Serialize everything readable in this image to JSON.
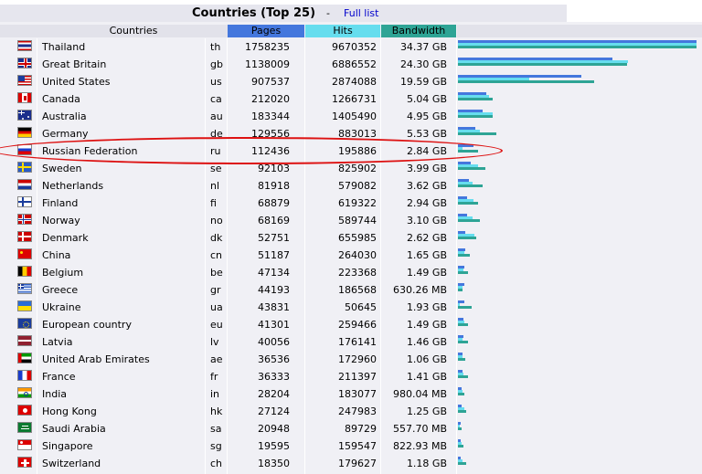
{
  "header": {
    "title": "Countries (Top 25)",
    "separator": "-",
    "full_list_label": "Full list"
  },
  "columns": {
    "countries": "Countries",
    "pages": "Pages",
    "hits": "Hits",
    "bandwidth": "Bandwidth"
  },
  "colors": {
    "pages": "#4477dd",
    "hits": "#66ddee",
    "bandwidth": "#2ea495",
    "highlight": "#dd1111"
  },
  "rows": [
    {
      "name": "Thailand",
      "code": "th",
      "pages": "1758235",
      "hits": "9670352",
      "bandwidth": "34.37 GB",
      "flag": "thailand-flag-icon"
    },
    {
      "name": "Great Britain",
      "code": "gb",
      "pages": "1138009",
      "hits": "6886552",
      "bandwidth": "24.30 GB",
      "flag": "great-britain-flag-icon"
    },
    {
      "name": "United States",
      "code": "us",
      "pages": "907537",
      "hits": "2874088",
      "bandwidth": "19.59 GB",
      "flag": "united-states-flag-icon"
    },
    {
      "name": "Canada",
      "code": "ca",
      "pages": "212020",
      "hits": "1266731",
      "bandwidth": "5.04 GB",
      "flag": "canada-flag-icon"
    },
    {
      "name": "Australia",
      "code": "au",
      "pages": "183344",
      "hits": "1405490",
      "bandwidth": "4.95 GB",
      "flag": "australia-flag-icon"
    },
    {
      "name": "Germany",
      "code": "de",
      "pages": "129556",
      "hits": "883013",
      "bandwidth": "5.53 GB",
      "flag": "germany-flag-icon"
    },
    {
      "name": "Russian Federation",
      "code": "ru",
      "pages": "112436",
      "hits": "195886",
      "bandwidth": "2.84 GB",
      "flag": "russia-flag-icon"
    },
    {
      "name": "Sweden",
      "code": "se",
      "pages": "92103",
      "hits": "825902",
      "bandwidth": "3.99 GB",
      "flag": "sweden-flag-icon"
    },
    {
      "name": "Netherlands",
      "code": "nl",
      "pages": "81918",
      "hits": "579082",
      "bandwidth": "3.62 GB",
      "flag": "netherlands-flag-icon"
    },
    {
      "name": "Finland",
      "code": "fi",
      "pages": "68879",
      "hits": "619322",
      "bandwidth": "2.94 GB",
      "flag": "finland-flag-icon"
    },
    {
      "name": "Norway",
      "code": "no",
      "pages": "68169",
      "hits": "589744",
      "bandwidth": "3.10 GB",
      "flag": "norway-flag-icon"
    },
    {
      "name": "Denmark",
      "code": "dk",
      "pages": "52751",
      "hits": "655985",
      "bandwidth": "2.62 GB",
      "flag": "denmark-flag-icon"
    },
    {
      "name": "China",
      "code": "cn",
      "pages": "51187",
      "hits": "264030",
      "bandwidth": "1.65 GB",
      "flag": "china-flag-icon"
    },
    {
      "name": "Belgium",
      "code": "be",
      "pages": "47134",
      "hits": "223368",
      "bandwidth": "1.49 GB",
      "flag": "belgium-flag-icon"
    },
    {
      "name": "Greece",
      "code": "gr",
      "pages": "44193",
      "hits": "186568",
      "bandwidth": "630.26 MB",
      "flag": "greece-flag-icon"
    },
    {
      "name": "Ukraine",
      "code": "ua",
      "pages": "43831",
      "hits": "50645",
      "bandwidth": "1.93 GB",
      "flag": "ukraine-flag-icon"
    },
    {
      "name": "European country",
      "code": "eu",
      "pages": "41301",
      "hits": "259466",
      "bandwidth": "1.49 GB",
      "flag": "europe-flag-icon"
    },
    {
      "name": "Latvia",
      "code": "lv",
      "pages": "40056",
      "hits": "176141",
      "bandwidth": "1.46 GB",
      "flag": "latvia-flag-icon"
    },
    {
      "name": "United Arab Emirates",
      "code": "ae",
      "pages": "36536",
      "hits": "172960",
      "bandwidth": "1.06 GB",
      "flag": "uae-flag-icon"
    },
    {
      "name": "France",
      "code": "fr",
      "pages": "36333",
      "hits": "211397",
      "bandwidth": "1.41 GB",
      "flag": "france-flag-icon"
    },
    {
      "name": "India",
      "code": "in",
      "pages": "28204",
      "hits": "183077",
      "bandwidth": "980.04 MB",
      "flag": "india-flag-icon"
    },
    {
      "name": "Hong Kong",
      "code": "hk",
      "pages": "27124",
      "hits": "247983",
      "bandwidth": "1.25 GB",
      "flag": "hong-kong-flag-icon"
    },
    {
      "name": "Saudi Arabia",
      "code": "sa",
      "pages": "20948",
      "hits": "89729",
      "bandwidth": "557.70 MB",
      "flag": "saudi-arabia-flag-icon"
    },
    {
      "name": "Singapore",
      "code": "sg",
      "pages": "19595",
      "hits": "159547",
      "bandwidth": "822.93 MB",
      "flag": "singapore-flag-icon"
    },
    {
      "name": "Switzerland",
      "code": "ch",
      "pages": "18350",
      "hits": "179627",
      "bandwidth": "1.18 GB",
      "flag": "switzerland-flag-icon"
    }
  ],
  "highlighted_row": "ru"
}
